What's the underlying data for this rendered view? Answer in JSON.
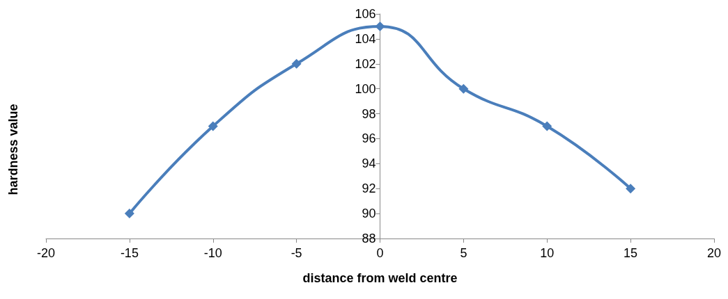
{
  "chart_data": {
    "type": "line",
    "xlabel": "distance from weld centre",
    "ylabel": "hardness value",
    "x": [
      -15,
      -10,
      -5,
      0,
      5,
      10,
      15
    ],
    "series": [
      {
        "color": "#4a7ebb",
        "values": [
          90,
          97,
          102,
          105,
          100,
          97,
          92
        ]
      }
    ],
    "xlim": [
      -20,
      20
    ],
    "xticks": [
      -20,
      -15,
      -10,
      -5,
      0,
      5,
      10,
      15,
      20
    ],
    "ylim": [
      88,
      106
    ],
    "yticks": [
      88,
      90,
      92,
      94,
      96,
      98,
      100,
      102,
      104,
      106
    ],
    "marker": "diamond",
    "line_style": "solid"
  }
}
